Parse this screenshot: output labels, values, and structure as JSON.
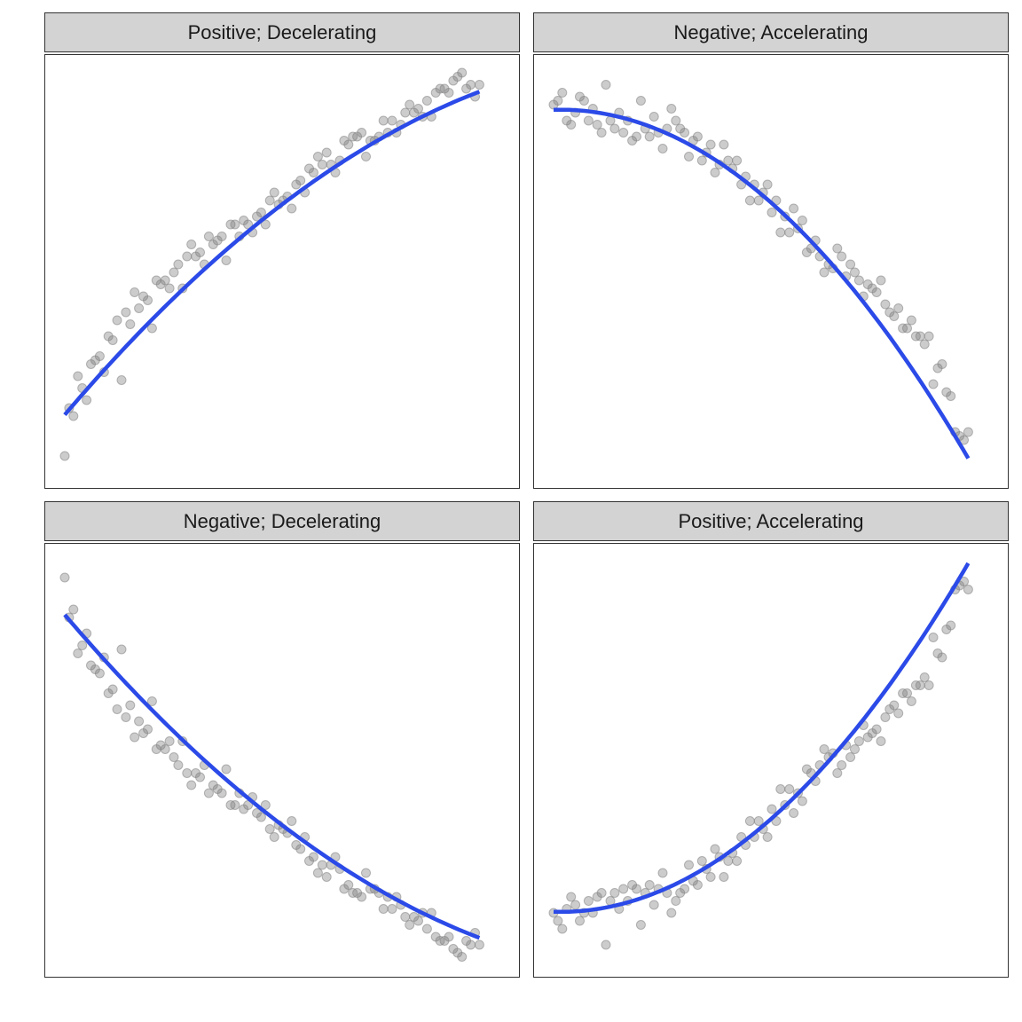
{
  "figure": {
    "colors": {
      "points": "#808080",
      "fit_line": "#2b4ae8",
      "strip_fill": "#d3d3d3",
      "border": "#333333"
    }
  },
  "chart_data": [
    {
      "type": "scatter",
      "title": "Positive; Decelerating",
      "xlim": [
        0,
        100
      ],
      "ylim": [
        0,
        100
      ],
      "grid": false,
      "trend": "quadratic fit line",
      "x": [
        0,
        1,
        2,
        3,
        4,
        5,
        6,
        7,
        8,
        9,
        10,
        11,
        12,
        13,
        14,
        15,
        16,
        17,
        18,
        19,
        20,
        21,
        22,
        23,
        24,
        25,
        26,
        27,
        28,
        29,
        30,
        31,
        32,
        33,
        34,
        35,
        36,
        37,
        38,
        39,
        40,
        41,
        42,
        43,
        44,
        45,
        46,
        47,
        48,
        49,
        50,
        51,
        52,
        53,
        54,
        55,
        56,
        57,
        58,
        59,
        60,
        61,
        62,
        63,
        64,
        65,
        66,
        67,
        68,
        69,
        70,
        71,
        72,
        73,
        74,
        75,
        76,
        77,
        78,
        79,
        80,
        81,
        82,
        83,
        84,
        85,
        86,
        87,
        88,
        89,
        90,
        91,
        92,
        93,
        94,
        95
      ],
      "y": [
        4,
        16,
        14,
        24,
        21,
        18,
        27,
        28,
        29,
        25,
        34,
        33,
        38,
        23,
        40,
        37,
        45,
        41,
        44,
        43,
        36,
        48,
        47,
        48,
        46,
        50,
        52,
        46,
        54,
        57,
        54,
        55,
        52,
        59,
        57,
        58,
        59,
        53,
        62,
        62,
        59,
        63,
        62,
        60,
        64,
        65,
        62,
        68,
        70,
        67,
        68,
        69,
        66,
        72,
        73,
        70,
        76,
        75,
        79,
        77,
        80,
        77,
        75,
        78,
        83,
        82,
        84,
        84,
        85,
        79,
        83,
        83,
        84,
        88,
        85,
        88,
        85,
        87,
        90,
        92,
        90,
        91,
        89,
        93,
        89,
        95,
        96,
        96,
        95,
        98,
        99,
        100,
        96,
        97,
        94,
        97
      ],
      "fit": [
        [
          0,
          14.3
        ],
        [
          10,
          26.7
        ],
        [
          20,
          38.2
        ],
        [
          30,
          48.8
        ],
        [
          40,
          58.5
        ],
        [
          50,
          67.2
        ],
        [
          60,
          75.0
        ],
        [
          70,
          81.9
        ],
        [
          80,
          87.9
        ],
        [
          90,
          93.1
        ],
        [
          95,
          95.3
        ]
      ]
    },
    {
      "type": "scatter",
      "title": "Negative; Accelerating",
      "xlim": [
        0,
        100
      ],
      "ylim": [
        0,
        100
      ],
      "grid": false,
      "trend": "quadratic fit line",
      "x": [
        0,
        1,
        2,
        3,
        4,
        5,
        6,
        7,
        8,
        9,
        10,
        11,
        12,
        13,
        14,
        15,
        16,
        17,
        18,
        19,
        20,
        21,
        22,
        23,
        24,
        25,
        26,
        27,
        28,
        29,
        30,
        31,
        32,
        33,
        34,
        35,
        36,
        37,
        38,
        39,
        40,
        41,
        42,
        43,
        44,
        45,
        46,
        47,
        48,
        49,
        50,
        51,
        52,
        53,
        54,
        55,
        56,
        57,
        58,
        59,
        60,
        61,
        62,
        63,
        64,
        65,
        66,
        67,
        68,
        69,
        70,
        71,
        72,
        73,
        74,
        75,
        76,
        77,
        78,
        79,
        80,
        81,
        82,
        83,
        84,
        85,
        86,
        87,
        88,
        89,
        90,
        91,
        92,
        93,
        94,
        95
      ],
      "y": [
        92,
        93,
        95,
        88,
        87,
        90,
        94,
        93,
        88,
        91,
        87,
        85,
        97,
        88,
        86,
        90,
        85,
        88,
        83,
        84,
        93,
        86,
        84,
        89,
        85,
        81,
        86,
        91,
        88,
        86,
        85,
        79,
        83,
        84,
        78,
        80,
        82,
        75,
        77,
        82,
        78,
        76,
        78,
        72,
        74,
        68,
        72,
        68,
        70,
        72,
        65,
        68,
        60,
        64,
        60,
        66,
        61,
        63,
        55,
        56,
        58,
        54,
        50,
        52,
        51,
        56,
        54,
        49,
        52,
        50,
        48,
        44,
        47,
        46,
        45,
        48,
        42,
        40,
        39,
        41,
        36,
        36,
        38,
        34,
        34,
        32,
        34,
        22,
        26,
        27,
        20,
        19,
        10,
        9,
        8,
        10
      ],
      "fit": [
        [
          0,
          89.1
        ],
        [
          10,
          90.3
        ],
        [
          20,
          88.4
        ],
        [
          30,
          84.5
        ],
        [
          40,
          76.9
        ],
        [
          50,
          66.8
        ],
        [
          60,
          55.5
        ],
        [
          70,
          42.0
        ],
        [
          80,
          28.5
        ],
        [
          90,
          13.0
        ],
        [
          95,
          4.7
        ]
      ]
    },
    {
      "type": "scatter",
      "title": "Negative; Decelerating",
      "xlim": [
        0,
        100
      ],
      "ylim": [
        0,
        100
      ],
      "grid": false,
      "trend": "quadratic fit line",
      "x": [
        0,
        1,
        2,
        3,
        4,
        5,
        6,
        7,
        8,
        9,
        10,
        11,
        12,
        13,
        14,
        15,
        16,
        17,
        18,
        19,
        20,
        21,
        22,
        23,
        24,
        25,
        26,
        27,
        28,
        29,
        30,
        31,
        32,
        33,
        34,
        35,
        36,
        37,
        38,
        39,
        40,
        41,
        42,
        43,
        44,
        45,
        46,
        47,
        48,
        49,
        50,
        51,
        52,
        53,
        54,
        55,
        56,
        57,
        58,
        59,
        60,
        61,
        62,
        63,
        64,
        65,
        66,
        67,
        68,
        69,
        70,
        71,
        72,
        73,
        74,
        75,
        76,
        77,
        78,
        79,
        80,
        81,
        82,
        83,
        84,
        85,
        86,
        87,
        88,
        89,
        90,
        91,
        92,
        93,
        94,
        95
      ],
      "y": [
        96,
        86,
        88,
        77,
        79,
        82,
        74,
        73,
        72,
        76,
        67,
        68,
        63,
        78,
        61,
        64,
        56,
        60,
        57,
        58,
        65,
        53,
        54,
        53,
        55,
        51,
        49,
        55,
        47,
        44,
        47,
        46,
        49,
        42,
        44,
        43,
        42,
        48,
        39,
        39,
        42,
        38,
        39,
        41,
        37,
        36,
        39,
        33,
        31,
        34,
        33,
        32,
        35,
        29,
        28,
        31,
        25,
        26,
        22,
        24,
        21,
        24,
        26,
        23,
        18,
        19,
        17,
        17,
        16,
        22,
        18,
        18,
        17,
        13,
        16,
        13,
        16,
        14,
        11,
        9,
        11,
        10,
        12,
        8,
        12,
        6,
        5,
        5,
        6,
        3,
        2,
        1,
        5,
        4,
        7,
        4
      ],
      "fit": [
        [
          0,
          86.7
        ],
        [
          10,
          74.3
        ],
        [
          20,
          62.8
        ],
        [
          30,
          52.2
        ],
        [
          40,
          42.5
        ],
        [
          50,
          33.8
        ],
        [
          60,
          26.0
        ],
        [
          70,
          19.1
        ],
        [
          80,
          13.1
        ],
        [
          90,
          7.9
        ],
        [
          95,
          5.7
        ]
      ]
    },
    {
      "type": "scatter",
      "title": "Positive; Accelerating",
      "xlim": [
        0,
        100
      ],
      "ylim": [
        0,
        100
      ],
      "grid": false,
      "trend": "quadratic fit line",
      "x": [
        0,
        1,
        2,
        3,
        4,
        5,
        6,
        7,
        8,
        9,
        10,
        11,
        12,
        13,
        14,
        15,
        16,
        17,
        18,
        19,
        20,
        21,
        22,
        23,
        24,
        25,
        26,
        27,
        28,
        29,
        30,
        31,
        32,
        33,
        34,
        35,
        36,
        37,
        38,
        39,
        40,
        41,
        42,
        43,
        44,
        45,
        46,
        47,
        48,
        49,
        50,
        51,
        52,
        53,
        54,
        55,
        56,
        57,
        58,
        59,
        60,
        61,
        62,
        63,
        64,
        65,
        66,
        67,
        68,
        69,
        70,
        71,
        72,
        73,
        74,
        75,
        76,
        77,
        78,
        79,
        80,
        81,
        82,
        83,
        84,
        85,
        86,
        87,
        88,
        89,
        90,
        91,
        92,
        93,
        94,
        95
      ],
      "y": [
        12,
        10,
        8,
        13,
        16,
        14,
        10,
        12,
        15,
        12,
        16,
        17,
        4,
        15,
        17,
        13,
        18,
        15,
        19,
        18,
        9,
        17,
        19,
        14,
        18,
        22,
        17,
        12,
        15,
        17,
        18,
        24,
        20,
        19,
        25,
        23,
        21,
        28,
        26,
        21,
        25,
        27,
        25,
        31,
        29,
        35,
        31,
        35,
        33,
        31,
        38,
        35,
        43,
        39,
        43,
        37,
        42,
        40,
        48,
        47,
        45,
        49,
        53,
        51,
        52,
        47,
        49,
        54,
        51,
        53,
        55,
        59,
        56,
        57,
        58,
        55,
        61,
        63,
        64,
        62,
        67,
        67,
        65,
        69,
        69,
        71,
        69,
        81,
        77,
        76,
        83,
        84,
        93,
        94,
        95,
        93
      ],
      "fit": [
        [
          0,
          13.9
        ],
        [
          10,
          12.7
        ],
        [
          20,
          14.6
        ],
        [
          30,
          18.5
        ],
        [
          40,
          26.1
        ],
        [
          50,
          36.2
        ],
        [
          60,
          47.5
        ],
        [
          70,
          61.0
        ],
        [
          80,
          74.5
        ],
        [
          90,
          90.0
        ],
        [
          95,
          98.3
        ]
      ]
    }
  ]
}
